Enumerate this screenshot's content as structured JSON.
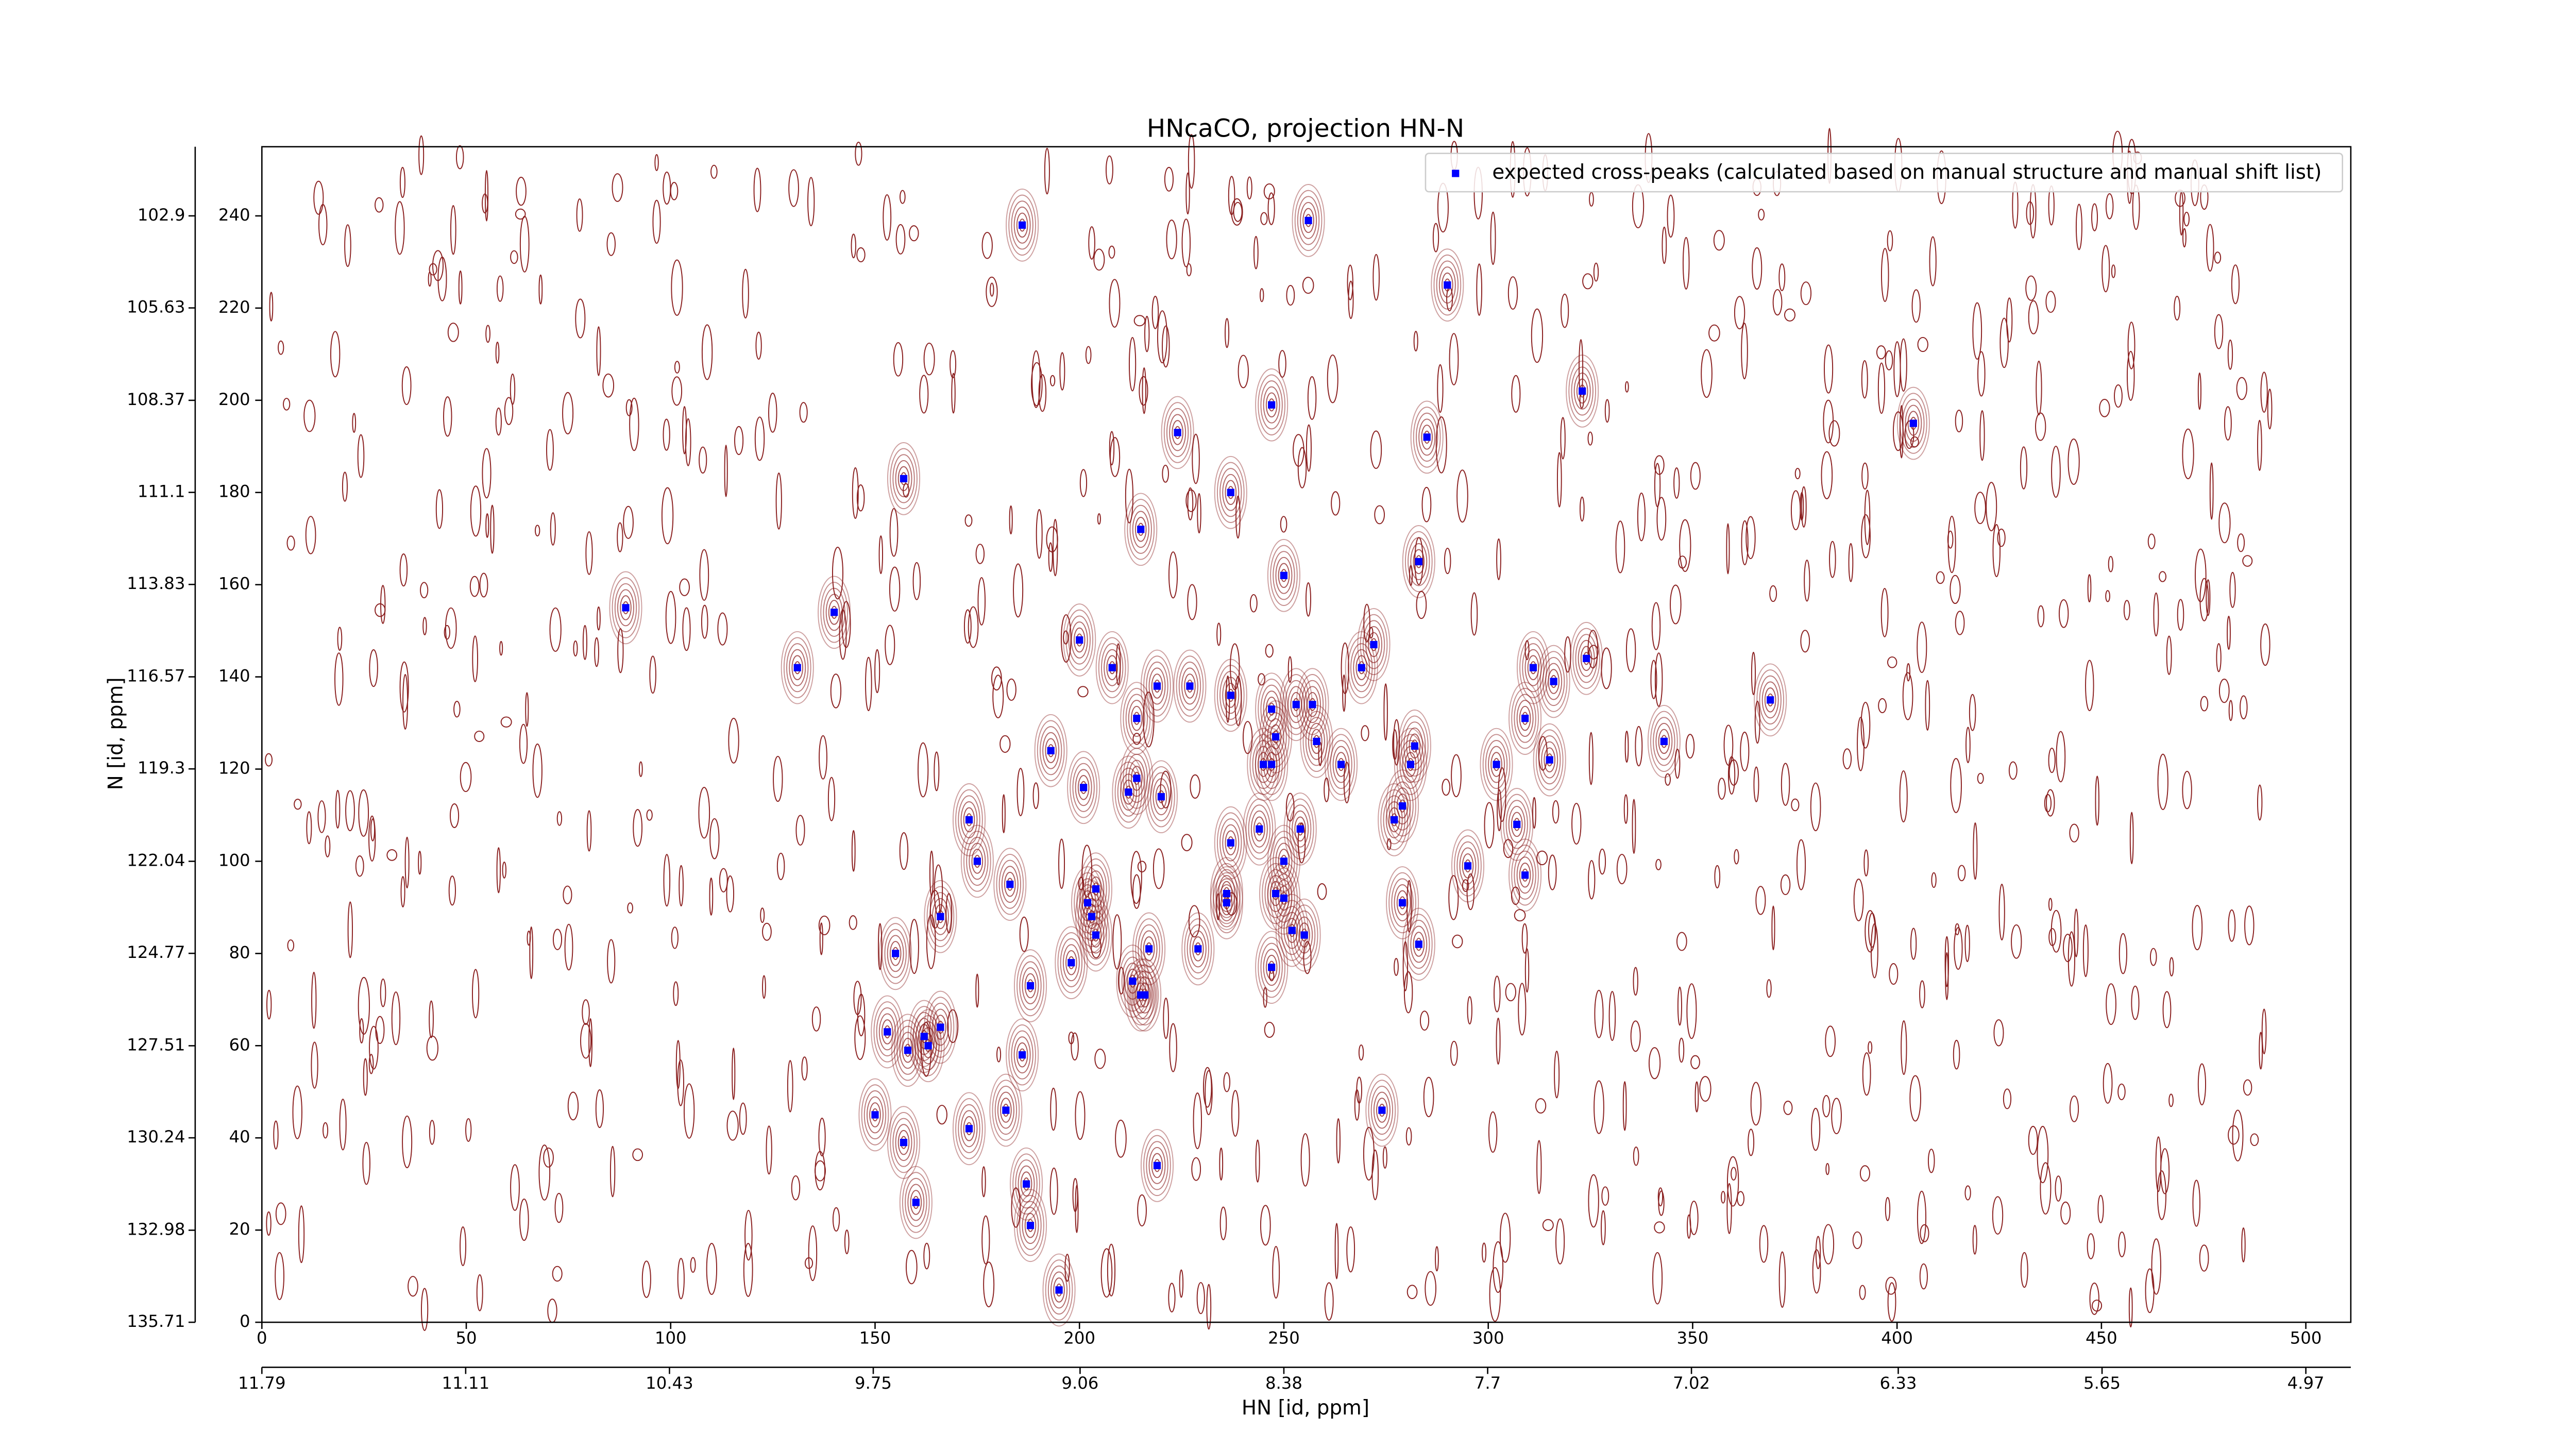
{
  "chart_data": {
    "type": "scatter",
    "title": "HNcaCO, projection HN-N",
    "xlabel": "HN [id, ppm]",
    "ylabel": "N [id, ppm]",
    "xlim": [
      0,
      511
    ],
    "ylim": [
      0,
      255
    ],
    "xticks": [
      0,
      50,
      100,
      150,
      200,
      250,
      300,
      350,
      400,
      450,
      500
    ],
    "yticks": [
      0,
      20,
      40,
      60,
      80,
      100,
      120,
      140,
      160,
      180,
      200,
      220,
      240
    ],
    "x2lim": [
      11.79,
      4.82
    ],
    "x2ticks": [
      11.79,
      11.11,
      10.43,
      9.75,
      9.06,
      8.38,
      7.7,
      7.02,
      6.33,
      5.65,
      4.97
    ],
    "y2lim": [
      135.71,
      100.85
    ],
    "y2ticks": [
      135.71,
      132.98,
      130.24,
      127.51,
      124.77,
      122.04,
      119.3,
      116.57,
      113.83,
      111.1,
      108.37,
      105.63,
      102.9
    ],
    "legend": "upper right",
    "series": [
      {
        "name": "expected cross-peaks (calculated based on manual structure and manual shift list)",
        "color": "#0000ff",
        "x": [
          186,
          256,
          290,
          323,
          404,
          247,
          224,
          285,
          157,
          237,
          215,
          283,
          250,
          89,
          140,
          200,
          272,
          324,
          131,
          208,
          311,
          269,
          316,
          219,
          227,
          237,
          253,
          257,
          369,
          247,
          214,
          309,
          343,
          248,
          258,
          282,
          193,
          315,
          264,
          281,
          302,
          245,
          247,
          201,
          214,
          212,
          220,
          279,
          173,
          277,
          307,
          244,
          254,
          175,
          237,
          250,
          295,
          309,
          183,
          204,
          236,
          248,
          202,
          236,
          250,
          279,
          166,
          203,
          204,
          252,
          255,
          229,
          217,
          283,
          155,
          198,
          247,
          188,
          213,
          215,
          216,
          153,
          166,
          162,
          163,
          158,
          186,
          182,
          274,
          150,
          173,
          157,
          219,
          187,
          188,
          160,
          195
        ],
        "values": [
          238,
          239,
          225,
          202,
          195,
          199,
          193,
          192,
          183,
          180,
          172,
          165,
          162,
          155,
          154,
          148,
          147,
          144,
          142,
          142,
          142,
          142,
          139,
          138,
          138,
          136,
          134,
          134,
          135,
          133,
          131,
          131,
          126,
          127,
          126,
          125,
          124,
          122,
          121,
          121,
          121,
          121,
          121,
          116,
          118,
          115,
          114,
          112,
          109,
          109,
          108,
          107,
          107,
          100,
          104,
          100,
          99,
          97,
          95,
          94,
          93,
          93,
          91,
          91,
          92,
          91,
          88,
          88,
          84,
          85,
          84,
          81,
          81,
          82,
          80,
          78,
          77,
          73,
          74,
          71,
          71,
          63,
          64,
          62,
          60,
          59,
          58,
          46,
          46,
          45,
          42,
          39,
          34,
          30,
          21,
          26,
          7
        ]
      }
    ]
  }
}
